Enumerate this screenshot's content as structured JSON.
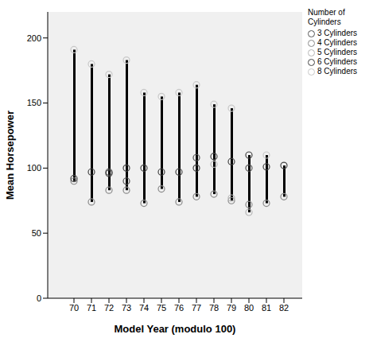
{
  "chart_data": {
    "type": "high-low",
    "x_label": "Model Year (modulo 100)",
    "y_label": "Mean Horsepower",
    "legend_title": "Number of Cylinders",
    "categories": [
      "70",
      "71",
      "72",
      "73",
      "74",
      "75",
      "76",
      "77",
      "78",
      "79",
      "80",
      "81",
      "82"
    ],
    "series": [
      {
        "name": "3 Cylinders",
        "color": "#555555",
        "values": [
          null,
          null,
          97,
          90,
          null,
          null,
          null,
          108,
          null,
          null,
          100,
          null,
          null
        ]
      },
      {
        "name": "4 Cylinders",
        "color": "#8a8a8a",
        "values": [
          90,
          74,
          83,
          83,
          73,
          84,
          74,
          78,
          80,
          75,
          72,
          73,
          78
        ]
      },
      {
        "name": "5 Cylinders",
        "color": "#b5b5b5",
        "values": [
          null,
          null,
          null,
          null,
          null,
          null,
          null,
          null,
          103,
          77,
          66,
          null,
          null
        ]
      },
      {
        "name": "6 Cylinders",
        "color": "#444444",
        "values": [
          92,
          97,
          96,
          100,
          100,
          97,
          97,
          100,
          109,
          105,
          110,
          101,
          102
        ]
      },
      {
        "name": "8 Cylinders",
        "color": "#c8c8c8",
        "values": [
          191,
          180,
          172,
          183,
          158,
          155,
          158,
          164,
          149,
          146,
          null,
          110,
          null
        ]
      }
    ],
    "ylim": [
      0,
      220
    ],
    "yticks": [
      0,
      50,
      100,
      150,
      200
    ],
    "legend": "right",
    "marker": "circle"
  }
}
